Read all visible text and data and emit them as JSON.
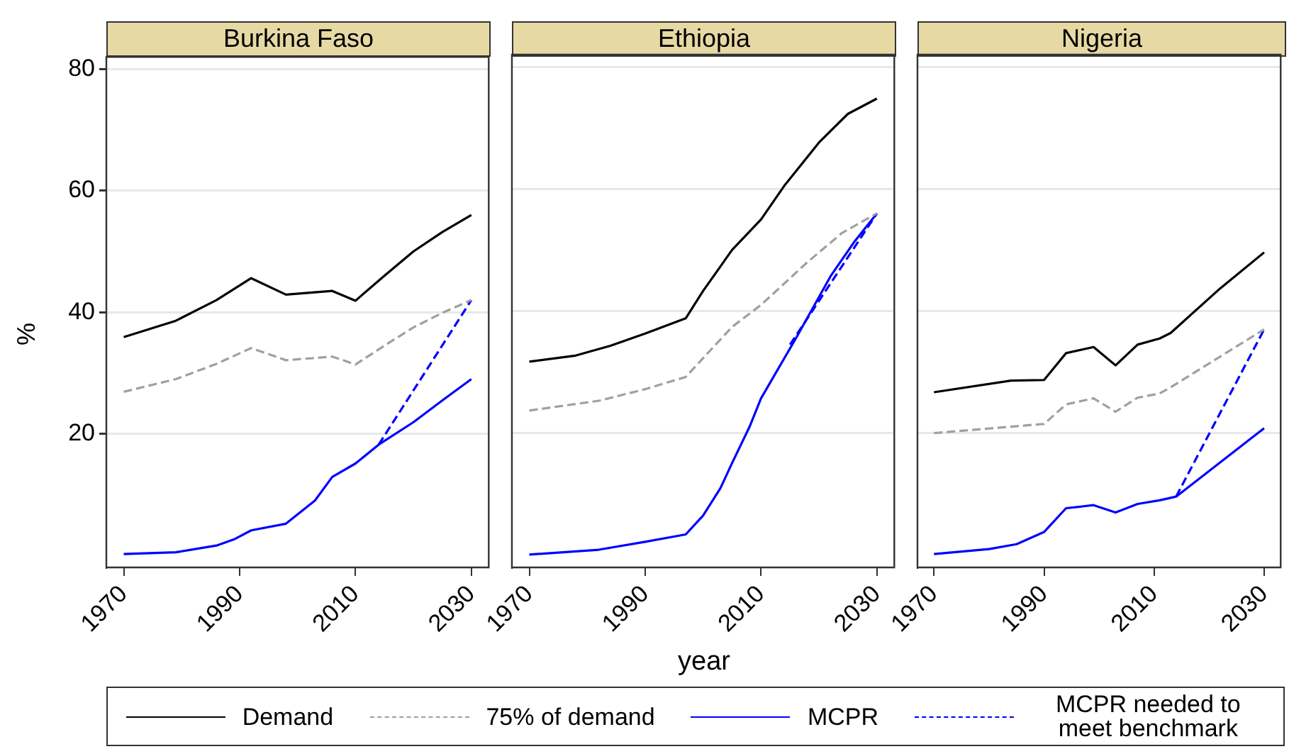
{
  "chart_data": [
    {
      "type": "line",
      "title": "Burkina Faso",
      "ylabel": "%",
      "legend": "bottom",
      "xlim": [
        1967,
        2033
      ],
      "xticks": [
        1970,
        1990,
        2010,
        2030
      ],
      "ylim": [
        -2,
        82
      ],
      "yticks": [
        20,
        40,
        60,
        80
      ],
      "grid": "y",
      "series": [
        {
          "name": "Demand",
          "color": "#000000",
          "line_style": "solid",
          "x": [
            1970,
            1979,
            1986,
            1992,
            1998,
            2006,
            2010,
            2015,
            2020,
            2025,
            2030
          ],
          "values": [
            35.9,
            38.6,
            42,
            45.6,
            42.9,
            43.5,
            41.9,
            46,
            50,
            53.2,
            56
          ]
        },
        {
          "name": "75% of demand",
          "color": "#a0a0a0",
          "line_style": "dashed",
          "x": [
            1970,
            1979,
            1986,
            1992,
            1998,
            2006,
            2010,
            2015,
            2020,
            2025,
            2030
          ],
          "values": [
            26.9,
            29,
            31.5,
            34.1,
            32.1,
            32.7,
            31.4,
            34.5,
            37.5,
            39.9,
            42
          ]
        },
        {
          "name": "MCPR",
          "color": "#0000ff",
          "line_style": "solid",
          "x": [
            1970,
            1979,
            1986,
            1989,
            1992,
            1998,
            2003,
            2006,
            2010,
            2014,
            2020,
            2025,
            2030
          ],
          "values": [
            0.2,
            0.5,
            1.6,
            2.6,
            4.1,
            5.2,
            9,
            12.9,
            15.1,
            18.2,
            21.9,
            25.5,
            29
          ]
        },
        {
          "name": "MCPR needed to meet benchmark",
          "color": "#0000ff",
          "line_style": "dashed",
          "x": [
            2014,
            2030
          ],
          "values": [
            18.2,
            42
          ]
        }
      ]
    },
    {
      "type": "line",
      "title": "Ethiopia",
      "xlabel": "year",
      "xlim": [
        1967,
        2033
      ],
      "xticks": [
        1970,
        1990,
        2010,
        2030
      ],
      "ylim": [
        -2,
        82
      ],
      "yticks": [
        20,
        40,
        60,
        80
      ],
      "grid": "y",
      "tick_labels": "x",
      "series": [
        {
          "color": "#000000",
          "line_style": "solid",
          "x": [
            1970,
            1978,
            1984,
            1990,
            1997,
            2000,
            2005,
            2010,
            2014,
            2020,
            2025,
            2030
          ],
          "values": [
            31.7,
            32.7,
            34.3,
            36.3,
            38.8,
            43.3,
            50,
            55,
            60.5,
            67.6,
            72.3,
            74.8
          ]
        },
        {
          "color": "#a0a0a0",
          "line_style": "dashed",
          "x": [
            1970,
            1982,
            1990,
            1997,
            2005,
            2010,
            2018,
            2024,
            2030
          ],
          "values": [
            23.7,
            25.3,
            27.2,
            29.2,
            37.4,
            41,
            48,
            52.8,
            56
          ]
        },
        {
          "color": "#0000ff",
          "line_style": "solid",
          "x": [
            1970,
            1982,
            1990,
            1997,
            2000,
            2003,
            2005,
            2008,
            2010,
            2016,
            2022,
            2026,
            2030
          ],
          "values": [
            0.1,
            0.9,
            2.2,
            3.4,
            6.5,
            11,
            15.1,
            21,
            25.7,
            35.5,
            45.7,
            51.2,
            56
          ]
        },
        {
          "color": "#0000ff",
          "line_style": "dashed",
          "x": [
            2015,
            2030
          ],
          "values": [
            34.5,
            56
          ]
        }
      ]
    },
    {
      "type": "line",
      "title": "Nigeria",
      "xlim": [
        1967,
        2033
      ],
      "xticks": [
        1970,
        1990,
        2010,
        2030
      ],
      "ylim": [
        -2,
        82
      ],
      "yticks": [
        20,
        40,
        60,
        80
      ],
      "grid": "y",
      "tick_labels": "x",
      "series": [
        {
          "color": "#000000",
          "line_style": "solid",
          "x": [
            1970,
            1984,
            1990,
            1994,
            1999,
            2003,
            2007,
            2011,
            2013,
            2022,
            2030
          ],
          "values": [
            26.7,
            28.6,
            28.7,
            33.1,
            34.1,
            31.1,
            34.5,
            35.5,
            36.4,
            43.7,
            49.6
          ]
        },
        {
          "color": "#a0a0a0",
          "line_style": "dashed",
          "x": [
            1970,
            1990,
            1994,
            1999,
            2003,
            2007,
            2011,
            2013,
            2030
          ],
          "values": [
            20,
            21.5,
            24.7,
            25.7,
            23.5,
            25.8,
            26.5,
            27.5,
            37
          ]
        },
        {
          "color": "#0000ff",
          "line_style": "solid",
          "x": [
            1970,
            1980,
            1985,
            1990,
            1994,
            1999,
            2003,
            2007,
            2011,
            2014,
            2030
          ],
          "values": [
            0.2,
            1,
            1.8,
            3.8,
            7.7,
            8.2,
            7,
            8.4,
            9,
            9.6,
            20.8
          ]
        },
        {
          "color": "#0000ff",
          "line_style": "dashed",
          "x": [
            2014,
            2030
          ],
          "values": [
            9.6,
            37
          ]
        }
      ]
    }
  ]
}
